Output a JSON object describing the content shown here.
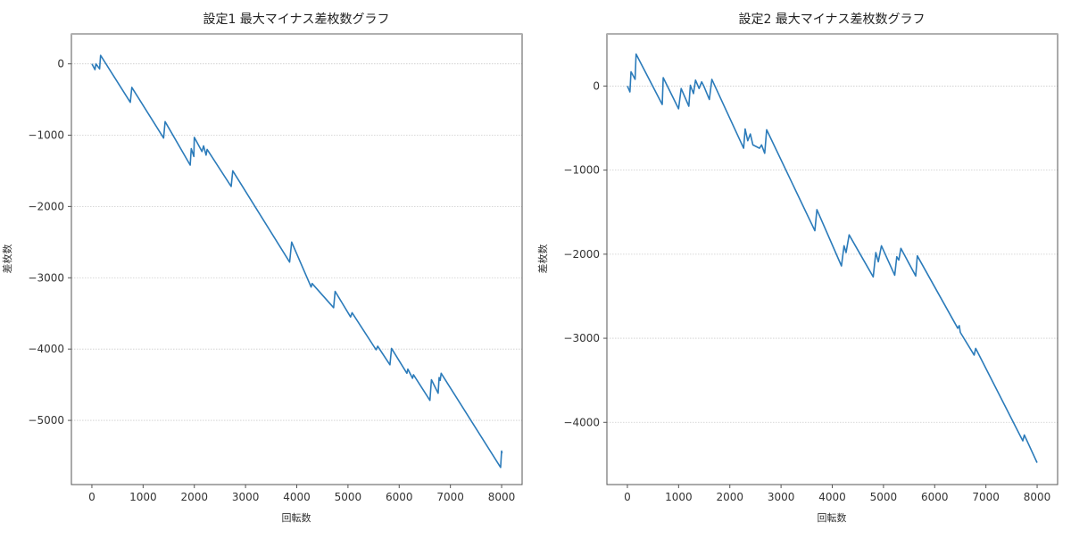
{
  "chart_data": [
    {
      "type": "line",
      "title": "設定1 最大マイナス差枚数グラフ",
      "xlabel": "回転数",
      "ylabel": "差枚数",
      "xticks": [
        0,
        1000,
        2000,
        3000,
        4000,
        5000,
        6000,
        7000,
        8000
      ],
      "yticks": [
        0,
        -1000,
        -2000,
        -3000,
        -4000,
        -5000
      ],
      "xlim": [
        -400,
        8400
      ],
      "ylim": [
        -5900,
        420
      ],
      "grid": "y-dotted",
      "color": "#2b7bba",
      "x": [
        0,
        60,
        80,
        150,
        170,
        750,
        780,
        1400,
        1430,
        1920,
        1940,
        1990,
        2000,
        2150,
        2180,
        2230,
        2250,
        2720,
        2750,
        3860,
        3900,
        4280,
        4300,
        4720,
        4750,
        5050,
        5080,
        5550,
        5580,
        5820,
        5850,
        6150,
        6170,
        6260,
        6280,
        6600,
        6630,
        6760,
        6780,
        6800,
        6820,
        7980,
        8000,
        8010
      ],
      "y": [
        0,
        -80,
        0,
        -70,
        120,
        -540,
        -330,
        -1040,
        -810,
        -1420,
        -1190,
        -1300,
        -1030,
        -1230,
        -1150,
        -1280,
        -1200,
        -1720,
        -1500,
        -2780,
        -2500,
        -3130,
        -3080,
        -3420,
        -3190,
        -3550,
        -3490,
        -4010,
        -3960,
        -4220,
        -3990,
        -4340,
        -4280,
        -4410,
        -4360,
        -4720,
        -4430,
        -4620,
        -4400,
        -4440,
        -4340,
        -5660,
        -5430,
        -5460
      ]
    },
    {
      "type": "line",
      "title": "設定2 最大マイナス差枚数グラフ",
      "xlabel": "回転数",
      "ylabel": "差枚数",
      "xticks": [
        0,
        1000,
        2000,
        3000,
        4000,
        5000,
        6000,
        7000,
        8000
      ],
      "yticks": [
        0,
        -1000,
        -2000,
        -3000,
        -4000
      ],
      "xlim": [
        -400,
        8400
      ],
      "ylim": [
        -4740,
        620
      ],
      "grid": "y-dotted",
      "color": "#2b7bba",
      "x": [
        0,
        50,
        70,
        150,
        170,
        680,
        700,
        1000,
        1050,
        1200,
        1230,
        1290,
        1330,
        1400,
        1450,
        1500,
        1600,
        1650,
        2270,
        2300,
        2350,
        2400,
        2450,
        2580,
        2620,
        2680,
        2720,
        3660,
        3700,
        4180,
        4230,
        4270,
        4330,
        4800,
        4850,
        4900,
        4960,
        5220,
        5260,
        5300,
        5340,
        5630,
        5660,
        6450,
        6480,
        6500,
        6770,
        6800,
        7720,
        7750,
        8000
      ],
      "y": [
        0,
        -70,
        170,
        80,
        380,
        -220,
        100,
        -270,
        -30,
        -240,
        10,
        -90,
        70,
        -30,
        50,
        -10,
        -160,
        80,
        -740,
        -510,
        -650,
        -570,
        -700,
        -740,
        -700,
        -800,
        -520,
        -1720,
        -1470,
        -2140,
        -1900,
        -1980,
        -1770,
        -2270,
        -1980,
        -2090,
        -1900,
        -2250,
        -2030,
        -2070,
        -1930,
        -2260,
        -2020,
        -2880,
        -2850,
        -2930,
        -3200,
        -3120,
        -4220,
        -4150,
        -4480
      ]
    }
  ]
}
